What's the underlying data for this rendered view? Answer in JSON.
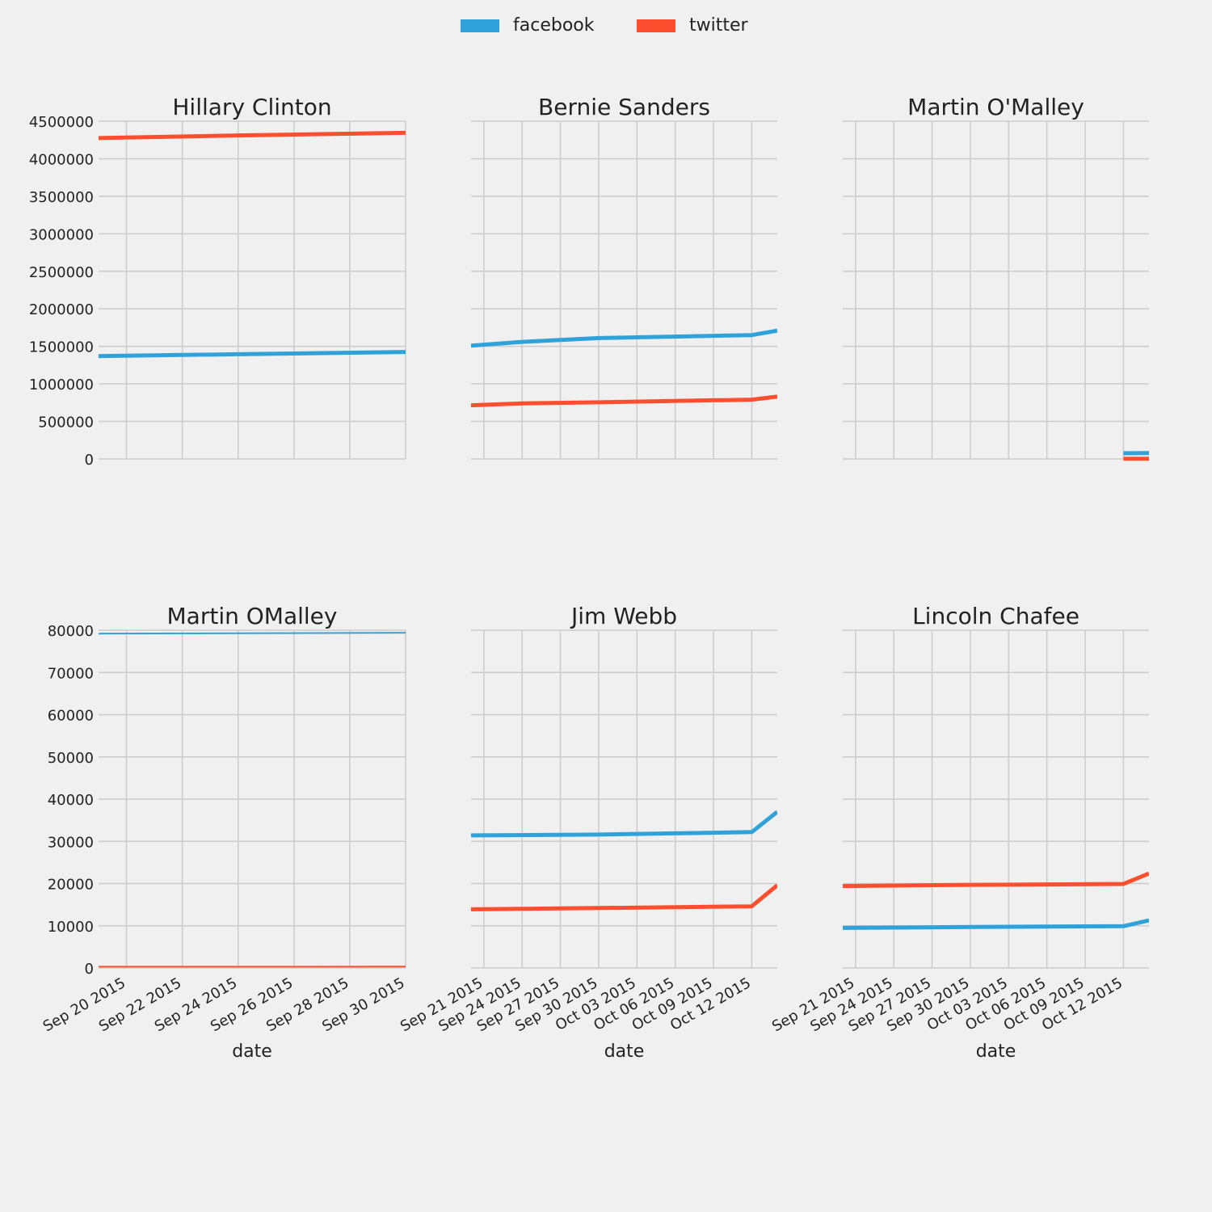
{
  "legend": [
    {
      "name": "facebook",
      "color": "#30a2da"
    },
    {
      "name": "twitter",
      "color": "#fc4f30"
    }
  ],
  "chart_data": [
    {
      "type": "line",
      "title": "Hillary Clinton",
      "xlabel": "",
      "xlim": [
        "2015-09-19",
        "2015-09-30"
      ],
      "xticks": [
        "2015-09-20",
        "2015-09-22",
        "2015-09-24",
        "2015-09-26",
        "2015-09-28",
        "2015-09-30"
      ],
      "xtick_labels": [],
      "ylim": [
        0,
        4500000
      ],
      "yticks": [
        0,
        500000,
        1000000,
        1500000,
        2000000,
        2500000,
        3000000,
        3500000,
        4000000,
        4500000
      ],
      "ytick_labels": [
        "0",
        "500000",
        "1000000",
        "1500000",
        "2000000",
        "2500000",
        "3000000",
        "3500000",
        "4000000",
        "4500000"
      ],
      "grid": true,
      "series": [
        {
          "name": "facebook",
          "color": "#30a2da",
          "x": [
            "2015-09-19",
            "2015-09-24",
            "2015-09-30"
          ],
          "y": [
            1370000,
            1395000,
            1425000
          ]
        },
        {
          "name": "twitter",
          "color": "#fc4f30",
          "x": [
            "2015-09-19",
            "2015-09-24",
            "2015-09-30"
          ],
          "y": [
            4275000,
            4310000,
            4345000
          ]
        }
      ]
    },
    {
      "type": "line",
      "title": "Bernie Sanders",
      "xlabel": "",
      "xlim": [
        "2015-09-20",
        "2015-10-14"
      ],
      "xticks": [
        "2015-09-21",
        "2015-09-24",
        "2015-09-27",
        "2015-09-30",
        "2015-10-03",
        "2015-10-06",
        "2015-10-09",
        "2015-10-12"
      ],
      "xtick_labels": [],
      "ylim": [
        0,
        4500000
      ],
      "yticks": [
        0,
        500000,
        1000000,
        1500000,
        2000000,
        2500000,
        3000000,
        3500000,
        4000000,
        4500000
      ],
      "ytick_labels": [],
      "grid": true,
      "series": [
        {
          "name": "facebook",
          "color": "#30a2da",
          "x": [
            "2015-09-20",
            "2015-09-24",
            "2015-09-30",
            "2015-10-12",
            "2015-10-14"
          ],
          "y": [
            1510000,
            1560000,
            1610000,
            1650000,
            1710000
          ]
        },
        {
          "name": "twitter",
          "color": "#fc4f30",
          "x": [
            "2015-09-20",
            "2015-09-24",
            "2015-09-30",
            "2015-10-12",
            "2015-10-14"
          ],
          "y": [
            715000,
            740000,
            755000,
            790000,
            830000
          ]
        }
      ]
    },
    {
      "type": "line",
      "title": "Martin O'Malley",
      "xlabel": "",
      "xlim": [
        "2015-09-20",
        "2015-10-14"
      ],
      "xticks": [
        "2015-09-21",
        "2015-09-24",
        "2015-09-27",
        "2015-09-30",
        "2015-10-03",
        "2015-10-06",
        "2015-10-09",
        "2015-10-12"
      ],
      "xtick_labels": [],
      "ylim": [
        0,
        4500000
      ],
      "yticks": [
        0,
        500000,
        1000000,
        1500000,
        2000000,
        2500000,
        3000000,
        3500000,
        4000000,
        4500000
      ],
      "ytick_labels": [],
      "grid": true,
      "series": [
        {
          "name": "facebook",
          "color": "#30a2da",
          "x": [
            "2015-10-12",
            "2015-10-14"
          ],
          "y": [
            75000,
            79000
          ]
        },
        {
          "name": "twitter",
          "color": "#fc4f30",
          "x": [
            "2015-10-12",
            "2015-10-14"
          ],
          "y": [
            3000,
            3500
          ]
        }
      ]
    },
    {
      "type": "line",
      "title": "Martin OMalley",
      "xlabel": "date",
      "xlim": [
        "2015-09-19",
        "2015-09-30"
      ],
      "xticks": [
        "2015-09-20",
        "2015-09-22",
        "2015-09-24",
        "2015-09-26",
        "2015-09-28",
        "2015-09-30"
      ],
      "xtick_labels": [
        "Sep 20 2015",
        "Sep 22 2015",
        "Sep 24 2015",
        "Sep 26 2015",
        "Sep 28 2015",
        "Sep 30 2015"
      ],
      "ylim": [
        0,
        80000
      ],
      "yticks": [
        0,
        10000,
        20000,
        30000,
        40000,
        50000,
        60000,
        70000,
        80000
      ],
      "ytick_labels": [
        "0",
        "10000",
        "20000",
        "30000",
        "40000",
        "50000",
        "60000",
        "70000",
        "80000"
      ],
      "grid": true,
      "series": [
        {
          "name": "facebook",
          "color": "#30a2da",
          "width": 2,
          "x": [
            "2015-09-19",
            "2015-09-24",
            "2015-09-30"
          ],
          "y": [
            79200,
            79300,
            79400
          ]
        },
        {
          "name": "twitter",
          "color": "#fc4f30",
          "width": 2,
          "x": [
            "2015-09-19",
            "2015-09-30"
          ],
          "y": [
            300,
            320
          ]
        }
      ]
    },
    {
      "type": "line",
      "title": "Jim Webb",
      "xlabel": "date",
      "xlim": [
        "2015-09-20",
        "2015-10-14"
      ],
      "xticks": [
        "2015-09-21",
        "2015-09-24",
        "2015-09-27",
        "2015-09-30",
        "2015-10-03",
        "2015-10-06",
        "2015-10-09",
        "2015-10-12"
      ],
      "xtick_labels": [
        "Sep 21 2015",
        "Sep 24 2015",
        "Sep 27 2015",
        "Sep 30 2015",
        "Oct 03 2015",
        "Oct 06 2015",
        "Oct 09 2015",
        "Oct 12 2015"
      ],
      "ylim": [
        0,
        80000
      ],
      "yticks": [
        0,
        10000,
        20000,
        30000,
        40000,
        50000,
        60000,
        70000,
        80000
      ],
      "ytick_labels": [],
      "grid": true,
      "series": [
        {
          "name": "facebook",
          "color": "#30a2da",
          "x": [
            "2015-09-20",
            "2015-09-30",
            "2015-10-12",
            "2015-10-14"
          ],
          "y": [
            31400,
            31600,
            32200,
            37000
          ]
        },
        {
          "name": "twitter",
          "color": "#fc4f30",
          "x": [
            "2015-09-20",
            "2015-09-30",
            "2015-10-12",
            "2015-10-14"
          ],
          "y": [
            13900,
            14200,
            14600,
            19600
          ]
        }
      ]
    },
    {
      "type": "line",
      "title": "Lincoln Chafee",
      "xlabel": "date",
      "xlim": [
        "2015-09-20",
        "2015-10-14"
      ],
      "xticks": [
        "2015-09-21",
        "2015-09-24",
        "2015-09-27",
        "2015-09-30",
        "2015-10-03",
        "2015-10-06",
        "2015-10-09",
        "2015-10-12"
      ],
      "xtick_labels": [
        "Sep 21 2015",
        "Sep 24 2015",
        "Sep 27 2015",
        "Sep 30 2015",
        "Oct 03 2015",
        "Oct 06 2015",
        "Oct 09 2015",
        "Oct 12 2015"
      ],
      "ylim": [
        0,
        80000
      ],
      "yticks": [
        0,
        10000,
        20000,
        30000,
        40000,
        50000,
        60000,
        70000,
        80000
      ],
      "ytick_labels": [],
      "grid": true,
      "series": [
        {
          "name": "facebook",
          "color": "#30a2da",
          "x": [
            "2015-09-20",
            "2015-09-30",
            "2015-10-12",
            "2015-10-14"
          ],
          "y": [
            9500,
            9700,
            9900,
            11300
          ]
        },
        {
          "name": "twitter",
          "color": "#fc4f30",
          "x": [
            "2015-09-20",
            "2015-09-30",
            "2015-10-12",
            "2015-10-14"
          ],
          "y": [
            19400,
            19700,
            19900,
            22400
          ]
        }
      ]
    }
  ]
}
